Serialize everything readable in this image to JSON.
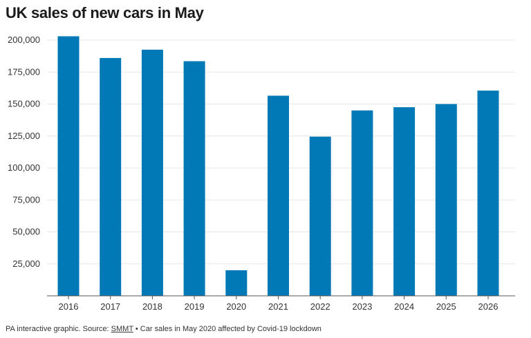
{
  "title": "UK sales of new cars in May",
  "footer": {
    "prefix": "PA interactive graphic. Source: ",
    "source_link": "SMMT",
    "note": " • Car sales in May 2020 affected by Covid-19 lockdown"
  },
  "colors": {
    "bar": "#0079b6",
    "grid": "#e6e6e6",
    "axis": "#555555",
    "text": "#333333"
  },
  "chart_data": {
    "type": "bar",
    "title": "UK sales of new cars in May",
    "xlabel": "",
    "ylabel": "",
    "categories": [
      "2016",
      "2017",
      "2018",
      "2019",
      "2020",
      "2021",
      "2022",
      "2023",
      "2024",
      "2025",
      "2026"
    ],
    "values": [
      203000,
      186000,
      192500,
      183500,
      20000,
      156500,
      124500,
      145000,
      147500,
      150000,
      160500
    ],
    "ylim": [
      0,
      200000
    ],
    "yticks": [
      25000,
      50000,
      75000,
      100000,
      125000,
      150000,
      175000,
      200000
    ],
    "ytick_labels": [
      "25,000",
      "50,000",
      "75,000",
      "100,000",
      "125,000",
      "150,000",
      "175,000",
      "200,000"
    ],
    "grid": true,
    "legend": "none"
  }
}
